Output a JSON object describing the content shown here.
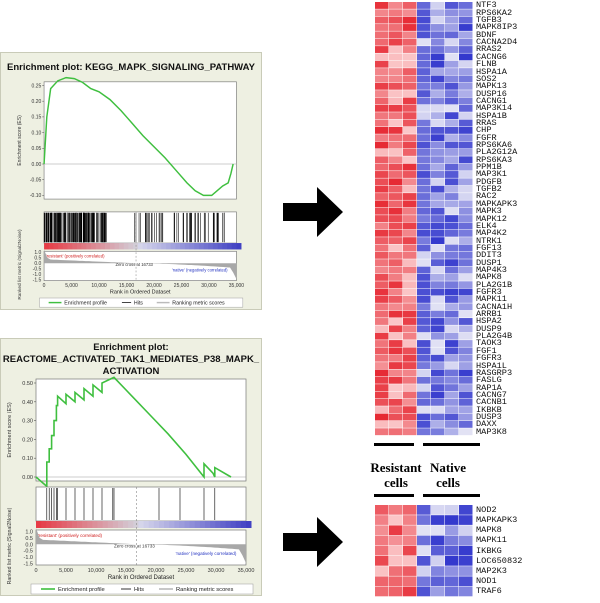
{
  "plot1": {
    "title": "Enrichment plot: KEGG_MAPK_SIGNALING_PATHWAY",
    "es_ylabel": "Enrichment score (ES)",
    "es_ticks": [
      0.25,
      0.2,
      0.15,
      0.1,
      0.05,
      0.0,
      -0.05,
      -0.1
    ],
    "es_curve": [
      [
        0,
        0
      ],
      [
        500,
        0.15
      ],
      [
        1200,
        0.24
      ],
      [
        2500,
        0.265
      ],
      [
        4000,
        0.275
      ],
      [
        5500,
        0.272
      ],
      [
        7000,
        0.26
      ],
      [
        8500,
        0.24
      ],
      [
        10000,
        0.23
      ],
      [
        12000,
        0.205
      ],
      [
        14000,
        0.17
      ],
      [
        16000,
        0.13
      ],
      [
        18000,
        0.09
      ],
      [
        20000,
        0.055
      ],
      [
        22000,
        0.02
      ],
      [
        24000,
        -0.02
      ],
      [
        26000,
        -0.06
      ],
      [
        27500,
        -0.085
      ],
      [
        29000,
        -0.1
      ],
      [
        30500,
        -0.1
      ],
      [
        31500,
        -0.085
      ],
      [
        32500,
        -0.07
      ],
      [
        33500,
        -0.06
      ],
      [
        34000,
        -0.03
      ],
      [
        34400,
        0.0
      ]
    ],
    "rank_ylabel": "Ranked list metric (Signal2Noise)",
    "rank_ticks": [
      "1.0",
      "0.5",
      "0.0",
      "-0.5",
      "-1.0",
      "-1.5"
    ],
    "pos_label": "'resistant' (positively correlated)",
    "neg_label": "'native' (negatively correlated)",
    "zero_cross": "Zero cross at 16733",
    "x_ticks": [
      "0",
      "5,000",
      "10,000",
      "15,000",
      "20,000",
      "25,000",
      "30,000",
      "35,000"
    ],
    "xlabel": "Rank in Ordered Dataset",
    "legend": [
      "Enrichment profile",
      "Hits",
      "Ranking metric scores"
    ]
  },
  "plot2": {
    "title_lines": [
      "Enrichment plot:",
      "REACTOME_ACTIVATED_TAK1_MEDIATES_P38_MAPK_",
      "ACTIVATION"
    ],
    "es_ylabel": "Enrichment score (ES)",
    "es_ticks": [
      0.5,
      0.4,
      0.3,
      0.2,
      0.1,
      0.0
    ],
    "es_curve": [
      [
        0,
        0
      ],
      [
        1800,
        -0.05
      ],
      [
        1800,
        0.08
      ],
      [
        2200,
        0.08
      ],
      [
        2200,
        0.15
      ],
      [
        2600,
        0.15
      ],
      [
        2600,
        0.22
      ],
      [
        3000,
        0.22
      ],
      [
        3000,
        0.3
      ],
      [
        3400,
        0.3
      ],
      [
        3400,
        0.38
      ],
      [
        3600,
        0.38
      ],
      [
        3600,
        0.43
      ],
      [
        5000,
        0.39
      ],
      [
        5000,
        0.44
      ],
      [
        6500,
        0.4
      ],
      [
        6500,
        0.45
      ],
      [
        8000,
        0.41
      ],
      [
        8000,
        0.47
      ],
      [
        9500,
        0.43
      ],
      [
        9500,
        0.49
      ],
      [
        11000,
        0.45
      ],
      [
        11000,
        0.5
      ],
      [
        13000,
        0.53
      ],
      [
        16000,
        0.43
      ],
      [
        19000,
        0.33
      ],
      [
        22000,
        0.23
      ],
      [
        25000,
        0.12
      ],
      [
        27500,
        0.02
      ],
      [
        28000,
        0.0
      ],
      [
        28000,
        0.07
      ],
      [
        29500,
        0.02
      ],
      [
        29800,
        0.0
      ],
      [
        29800,
        0.05
      ],
      [
        32500,
        0.0
      ]
    ],
    "rank_ylabel": "Ranked list metric (Signal2Noise)",
    "rank_ticks": [
      "1.0",
      "0.5",
      "0.0",
      "-0.5",
      "-1.0",
      "-1.5"
    ],
    "pos_label": "'resistant' (positively correlated)",
    "neg_label": "'native' (negatively correlated)",
    "zero_cross": "Zero cross at 16733",
    "x_ticks": [
      "0",
      "5,000",
      "10,000",
      "15,000",
      "20,000",
      "25,000",
      "30,000",
      "35,000"
    ],
    "xlabel": "Rank in Ordered Dataset",
    "legend": [
      "Enrichment profile",
      "Hits",
      "Ranking metric scores"
    ]
  },
  "heatmap1_genes": [
    "NTF3",
    "RPS6KA2",
    "TGFB3",
    "MAPK8IP3",
    "BDNF",
    "CACNA2D4",
    "RRAS2",
    "CACNG6",
    "FLNB",
    "HSPA1A",
    "SOS2",
    "MAPK13",
    "DUSP16",
    "CACNG1",
    "MAP3K14",
    "HSPA1B",
    "RRAS",
    "CHP",
    "FGFR",
    "RPS6KA6",
    "PLA2G12A",
    "RPS6KA3",
    "PPM1B",
    "MAP3K1",
    "PDGFB",
    "TGFB2",
    "RAC2",
    "MAPKAPK3",
    "MAPK3",
    "MAPK12",
    "ELK4",
    "MAP4K2",
    "NTRK1",
    "FGF13",
    "DDIT3",
    "DUSP1",
    "MAP4K3",
    "MAPK8",
    "PLA2G1B",
    "FGFR3",
    "MAPK11",
    "CACNA1H",
    "ARRB1",
    "HSPA2",
    "DUSP9",
    "PLA2G4B",
    "TAOK3",
    "FGF1",
    "FGFR3",
    "HSPA1L",
    "RASGRP3",
    "FASLG",
    "RAP1A",
    "CACNG7",
    "CACNB1",
    "IKBKB",
    "DUSP3",
    "DAXX",
    "MAP3K8"
  ],
  "heatmap2_genes": [
    "NOD2",
    "MAPKAPK3",
    "MAPK8",
    "MAPK11",
    "IKBKG",
    "LOC650832",
    "MAP2K3",
    "NOD1",
    "TRAF6"
  ],
  "groups": {
    "resistant": "Resistant cells",
    "native": "Native cells"
  },
  "colors": {
    "high": "#e8303a",
    "low": "#3a3fc8",
    "curve": "#3fbf3f",
    "panel": "#eef0e2"
  }
}
